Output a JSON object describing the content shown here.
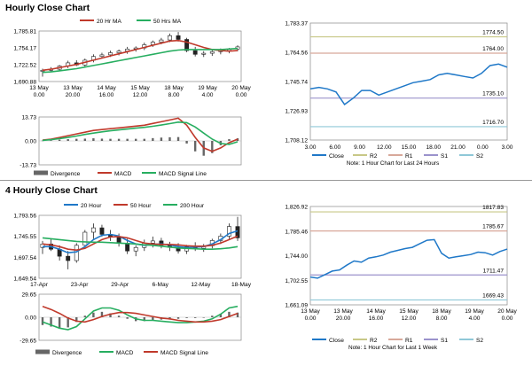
{
  "colors": {
    "ma20": "#c0392b",
    "ma50": "#27ae60",
    "ma200": "#27ae60",
    "hour20": "#1f78c8",
    "hour50": "#c0392b",
    "close": "#1f78c8",
    "macd": "#27ae60",
    "macd4h": "#27ae60",
    "signal4h": "#c0392b",
    "divergence": "#666666",
    "r2": "#c8c887",
    "r1": "#d8a89a",
    "s1": "#9b93cc",
    "s2": "#8fc8d8"
  },
  "sections": {
    "hourly_title": "Hourly Close Chart",
    "four_hourly_title": "4 Hourly Close Chart"
  },
  "chart_data": [
    {
      "id": "hourly-price",
      "type": "line",
      "title": "",
      "legend": [
        {
          "name": "20 Hr MA",
          "color_key": "ma20"
        },
        {
          "name": "50 Hrs MA",
          "color_key": "ma50"
        }
      ],
      "yticks": [
        "1,785.81",
        "1,754.17",
        "1,722.52",
        "1,690.88"
      ],
      "ylim": [
        1690.88,
        1785.81
      ],
      "xticks": [
        [
          "13 May",
          "0.00"
        ],
        [
          "13 May",
          "20.00"
        ],
        [
          "14 May",
          "16.00"
        ],
        [
          "15 May",
          "12.00"
        ],
        [
          "18 May",
          "8.00"
        ],
        [
          "19 May",
          "4.00"
        ],
        [
          "20 May",
          "0.00"
        ]
      ],
      "candles": [
        [
          1710,
          1715,
          1700,
          1712
        ],
        [
          1712,
          1718,
          1709,
          1714
        ],
        [
          1714,
          1722,
          1711,
          1720
        ],
        [
          1720,
          1730,
          1716,
          1726
        ],
        [
          1726,
          1731,
          1720,
          1722
        ],
        [
          1722,
          1734,
          1719,
          1731
        ],
        [
          1731,
          1742,
          1727,
          1738
        ],
        [
          1738,
          1745,
          1734,
          1741
        ],
        [
          1741,
          1749,
          1737,
          1745
        ],
        [
          1745,
          1751,
          1740,
          1748
        ],
        [
          1748,
          1756,
          1743,
          1752
        ],
        [
          1752,
          1757,
          1747,
          1754
        ],
        [
          1754,
          1764,
          1750,
          1760
        ],
        [
          1760,
          1768,
          1756,
          1765
        ],
        [
          1765,
          1773,
          1761,
          1769
        ],
        [
          1769,
          1781,
          1765,
          1777
        ],
        [
          1777,
          1784,
          1766,
          1770
        ],
        [
          1770,
          1773,
          1746,
          1749
        ],
        [
          1749,
          1756,
          1738,
          1742
        ],
        [
          1742,
          1748,
          1737,
          1744
        ],
        [
          1744,
          1750,
          1739,
          1747
        ],
        [
          1747,
          1753,
          1742,
          1749
        ],
        [
          1749,
          1754,
          1744,
          1752
        ],
        [
          1752,
          1759,
          1748,
          1756
        ]
      ],
      "series": [
        {
          "name": "20 Hr MA",
          "color_key": "ma20",
          "values": [
            1712,
            1714,
            1717,
            1720,
            1723,
            1727,
            1731,
            1735,
            1739,
            1743,
            1747,
            1751,
            1755,
            1759,
            1763,
            1767,
            1768,
            1765,
            1760,
            1755,
            1751,
            1749,
            1748,
            1749
          ]
        },
        {
          "name": "50 Hrs MA",
          "color_key": "ma50",
          "values": [
            1708,
            1709,
            1711,
            1713,
            1715,
            1718,
            1721,
            1724,
            1727,
            1730,
            1733,
            1736,
            1739,
            1742,
            1745,
            1748,
            1750,
            1751,
            1751,
            1751,
            1751,
            1751,
            1752,
            1753
          ]
        }
      ]
    },
    {
      "id": "hourly-macd",
      "type": "line",
      "yticks": [
        "13.73",
        "0.00",
        "-13.73"
      ],
      "ylim": [
        -13.73,
        13.73
      ],
      "legend": [
        {
          "name": "Divergence",
          "color_key": "divergence"
        },
        {
          "name": "MACD",
          "color_key": "ma20"
        },
        {
          "name": "MACD Signal Line",
          "color_key": "macd"
        }
      ],
      "series": [
        {
          "name": "MACD",
          "color_key": "ma20",
          "values": [
            0.5,
            1,
            2,
            3,
            4,
            5,
            6,
            6.5,
            7,
            7.5,
            8,
            8.5,
            9,
            10,
            11,
            12,
            13,
            9,
            2,
            -4,
            -6,
            -4,
            -1,
            1
          ]
        },
        {
          "name": "MACD Signal Line",
          "color_key": "macd",
          "values": [
            0.3,
            0.7,
            1.3,
            2,
            2.8,
            3.7,
            4.5,
            5.2,
            5.8,
            6.3,
            6.8,
            7.3,
            7.8,
            8.4,
            9.1,
            9.9,
            10.8,
            10.5,
            8,
            4.5,
            1,
            -1.5,
            -2,
            -0.5
          ]
        },
        {
          "name": "Divergence",
          "color_key": "divergence",
          "values": [
            0.2,
            0.3,
            0.7,
            1,
            1.2,
            1.3,
            1.5,
            1.3,
            1.2,
            1.2,
            1.2,
            1.2,
            1.2,
            1.6,
            1.9,
            2.1,
            2.2,
            -1.5,
            -6,
            -8.5,
            -7,
            -2.5,
            1,
            1.5
          ]
        }
      ]
    },
    {
      "id": "hourly-pivot",
      "type": "line",
      "yticks": [
        "1,783.37",
        "1,764.56",
        "1,745.74",
        "1,726.93",
        "1,708.12"
      ],
      "ylim": [
        1708.12,
        1783.37
      ],
      "xticks": [
        "3.00",
        "6.00",
        "9.00",
        "12.00",
        "15.00",
        "18.00",
        "21.00",
        "0.00",
        "3.00"
      ],
      "levels": [
        {
          "name": "R2",
          "value": 1774.5,
          "label": "1774.50",
          "color_key": "r2"
        },
        {
          "name": "R1",
          "value": 1764.0,
          "label": "1764.00",
          "color_key": "r1"
        },
        {
          "name": "S1",
          "value": 1735.1,
          "label": "1735.10",
          "color_key": "s1"
        },
        {
          "name": "S2",
          "value": 1716.7,
          "label": "1716.70",
          "color_key": "s2"
        }
      ],
      "series": [
        {
          "name": "Close",
          "color_key": "close",
          "values": [
            1741,
            1742,
            1741,
            1739,
            1731,
            1735,
            1740,
            1740,
            1737,
            1739,
            1741,
            1743,
            1745,
            1746,
            1747,
            1750,
            1751,
            1750,
            1749,
            1748,
            1751,
            1756,
            1757,
            1755
          ]
        }
      ],
      "legend": [
        "Close",
        "R2",
        "R1",
        "S1",
        "S2"
      ],
      "note": "Note: 1 Hour Chart for Last 24 Hours"
    },
    {
      "id": "four-hour-price",
      "type": "line",
      "legend": [
        {
          "name": "20 Hour",
          "color_key": "hour20"
        },
        {
          "name": "50 Hour",
          "color_key": "hour50"
        },
        {
          "name": "200 Hour",
          "color_key": "ma50"
        }
      ],
      "yticks": [
        "1,793.56",
        "1,745.55",
        "1,697.54",
        "1,649.54"
      ],
      "ylim": [
        1649.54,
        1793.56
      ],
      "xticks": [
        "17-Apr",
        "23-Apr",
        "29-Apr",
        "6-May",
        "12-May",
        "18-May"
      ],
      "candles": [
        [
          1720,
          1735,
          1705,
          1728
        ],
        [
          1728,
          1740,
          1712,
          1716
        ],
        [
          1716,
          1725,
          1690,
          1700
        ],
        [
          1700,
          1712,
          1670,
          1690
        ],
        [
          1690,
          1730,
          1685,
          1725
        ],
        [
          1725,
          1760,
          1720,
          1755
        ],
        [
          1755,
          1775,
          1740,
          1765
        ],
        [
          1765,
          1772,
          1745,
          1750
        ],
        [
          1750,
          1760,
          1735,
          1745
        ],
        [
          1745,
          1752,
          1722,
          1730
        ],
        [
          1730,
          1740,
          1705,
          1712
        ],
        [
          1712,
          1725,
          1700,
          1720
        ],
        [
          1720,
          1738,
          1712,
          1730
        ],
        [
          1730,
          1745,
          1720,
          1735
        ],
        [
          1735,
          1742,
          1718,
          1725
        ],
        [
          1725,
          1733,
          1712,
          1720
        ],
        [
          1720,
          1730,
          1706,
          1712
        ],
        [
          1712,
          1726,
          1705,
          1722
        ],
        [
          1722,
          1732,
          1712,
          1718
        ],
        [
          1718,
          1728,
          1710,
          1724
        ],
        [
          1724,
          1740,
          1718,
          1736
        ],
        [
          1736,
          1752,
          1728,
          1746
        ],
        [
          1746,
          1775,
          1740,
          1768
        ],
        [
          1768,
          1790,
          1735,
          1742
        ]
      ],
      "series": [
        {
          "name": "20 Hour",
          "color_key": "hour20",
          "values": [
            1722,
            1722,
            1716,
            1708,
            1710,
            1722,
            1738,
            1748,
            1750,
            1746,
            1736,
            1728,
            1725,
            1727,
            1728,
            1726,
            1722,
            1720,
            1721,
            1722,
            1728,
            1738,
            1752,
            1758
          ]
        },
        {
          "name": "50 Hour",
          "color_key": "hour50",
          "values": [
            1728,
            1726,
            1722,
            1716,
            1714,
            1718,
            1728,
            1738,
            1744,
            1745,
            1742,
            1736,
            1730,
            1728,
            1727,
            1727,
            1726,
            1724,
            1723,
            1723,
            1725,
            1730,
            1738,
            1746
          ]
        },
        {
          "name": "200 Hour",
          "color_key": "ma50",
          "values": [
            1742,
            1740,
            1738,
            1736,
            1734,
            1733,
            1732,
            1732,
            1731,
            1730,
            1729,
            1728,
            1726,
            1725,
            1723,
            1721,
            1719,
            1718,
            1717,
            1716,
            1716,
            1717,
            1719,
            1722
          ]
        }
      ]
    },
    {
      "id": "four-hour-macd",
      "type": "line",
      "yticks": [
        "29.65",
        "0.00",
        "-29.65"
      ],
      "ylim": [
        -29.65,
        29.65
      ],
      "legend": [
        {
          "name": "Divergence",
          "color_key": "divergence"
        },
        {
          "name": "MACD",
          "color_key": "macd4h"
        },
        {
          "name": "MACD Signal Line",
          "color_key": "signal4h"
        }
      ],
      "series": [
        {
          "name": "MACD",
          "color_key": "macd4h",
          "values": [
            -6,
            -10,
            -14,
            -16,
            -12,
            -2,
            8,
            12,
            12,
            9,
            3,
            -2,
            -4,
            -4,
            -5,
            -6,
            -7,
            -7,
            -6,
            -5,
            -2,
            4,
            12,
            14
          ]
        },
        {
          "name": "MACD Signal Line",
          "color_key": "signal4h",
          "values": [
            14,
            10,
            5,
            -1,
            -5,
            -6,
            -3,
            1,
            4,
            6,
            6,
            5,
            3,
            1,
            -1,
            -2,
            -4,
            -5,
            -6,
            -6,
            -5,
            -3,
            1,
            5
          ]
        },
        {
          "name": "Divergence",
          "color_key": "divergence",
          "values": [
            -10,
            -12,
            -14,
            -13,
            -6,
            2,
            6,
            7,
            5,
            2,
            -2,
            -5,
            -5,
            -4,
            -3,
            -3,
            -2,
            -1,
            -1,
            0,
            2,
            4,
            7,
            6
          ]
        }
      ]
    },
    {
      "id": "four-hour-pivot",
      "type": "line",
      "yticks": [
        "1,826.92",
        "1,785.46",
        "1,744.00",
        "1,702.55",
        "1,661.09"
      ],
      "ylim": [
        1661.09,
        1826.92
      ],
      "xticks": [
        [
          "13 May",
          "0.00"
        ],
        [
          "13 May",
          "20.00"
        ],
        [
          "14 May",
          "16.00"
        ],
        [
          "15 May",
          "12.00"
        ],
        [
          "18 May",
          "8.00"
        ],
        [
          "19 May",
          "4.00"
        ],
        [
          "20 May",
          "0.00"
        ]
      ],
      "levels": [
        {
          "name": "R2",
          "value": 1817.83,
          "label": "1817.83",
          "color_key": "r2"
        },
        {
          "name": "R1",
          "value": 1785.67,
          "label": "1785.67",
          "color_key": "r1"
        },
        {
          "name": "S1",
          "value": 1711.47,
          "label": "1711.47",
          "color_key": "s1"
        },
        {
          "name": "S2",
          "value": 1669.43,
          "label": "1669.43",
          "color_key": "s2"
        }
      ],
      "series": [
        {
          "name": "Close",
          "color_key": "close",
          "values": [
            1708,
            1706,
            1712,
            1718,
            1720,
            1728,
            1735,
            1733,
            1740,
            1742,
            1745,
            1750,
            1753,
            1756,
            1758,
            1764,
            1770,
            1771,
            1748,
            1740,
            1742,
            1744,
            1746,
            1750,
            1749,
            1745,
            1751,
            1755
          ]
        }
      ],
      "legend": [
        "Close",
        "R2",
        "R1",
        "S1",
        "S2"
      ],
      "note": "Note: 1 Hour Chart for Last 1 Week"
    }
  ]
}
